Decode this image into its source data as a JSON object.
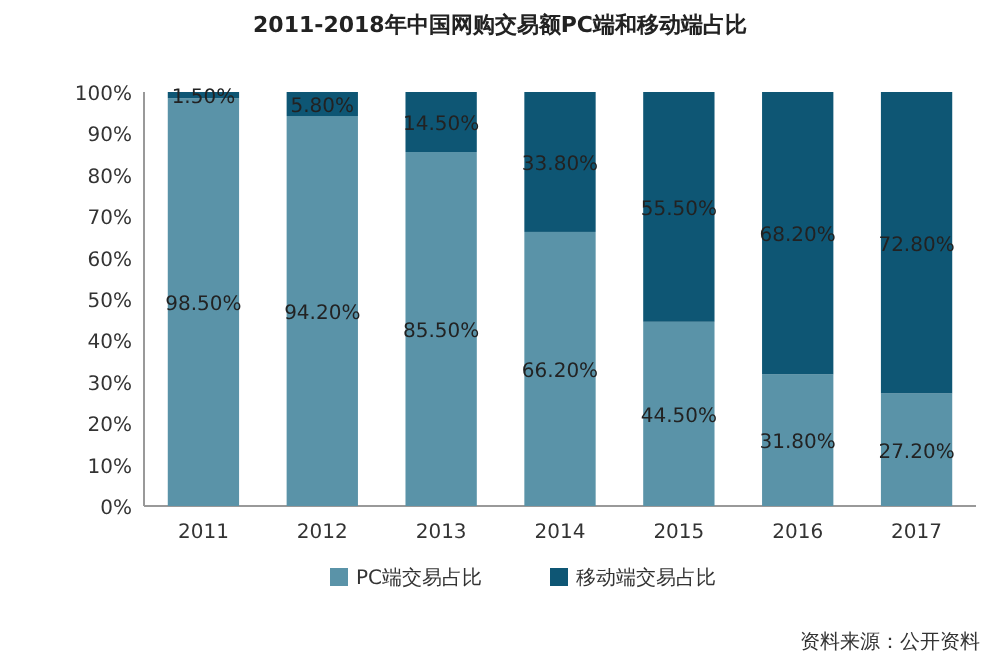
{
  "chart_data": {
    "type": "bar",
    "stacked": true,
    "title": "2011-2018年中国网购交易额PC端和移动端占比",
    "categories": [
      "2011",
      "2012",
      "2013",
      "2014",
      "2015",
      "2016",
      "2017"
    ],
    "series": [
      {
        "name": "PC端交易占比",
        "color": "#5a93a8",
        "values": [
          98.5,
          94.2,
          85.5,
          66.2,
          44.5,
          31.8,
          27.2
        ],
        "value_labels": [
          "98.50%",
          "94.20%",
          "85.50%",
          "66.20%",
          "44.50%",
          "31.80%",
          "27.20%"
        ]
      },
      {
        "name": "移动端交易占比",
        "color": "#0e5674",
        "values": [
          1.5,
          5.8,
          14.5,
          33.8,
          55.5,
          68.2,
          72.8
        ],
        "value_labels": [
          "1.50%",
          "5.80%",
          "14.50%",
          "33.80%",
          "55.50%",
          "68.20%",
          "72.80%"
        ]
      }
    ],
    "ylim": [
      0,
      100
    ],
    "yticks": [
      {
        "value": 0,
        "label": "0%"
      },
      {
        "value": 10,
        "label": "10%"
      },
      {
        "value": 20,
        "label": "20%"
      },
      {
        "value": 30,
        "label": "30%"
      },
      {
        "value": 40,
        "label": "40%"
      },
      {
        "value": 50,
        "label": "50%"
      },
      {
        "value": 60,
        "label": "60%"
      },
      {
        "value": 70,
        "label": "70%"
      },
      {
        "value": 80,
        "label": "80%"
      },
      {
        "value": 90,
        "label": "90%"
      },
      {
        "value": 100,
        "label": "100%"
      }
    ],
    "legend": "bottom",
    "annotations": [
      "资料来源：公开资料"
    ]
  }
}
